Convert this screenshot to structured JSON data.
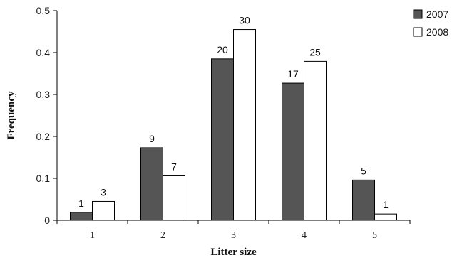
{
  "chart_data": {
    "type": "bar",
    "title": "",
    "xlabel": "Litter size",
    "ylabel": "Frequency",
    "categories": [
      "1",
      "2",
      "3",
      "4",
      "5"
    ],
    "ylim": [
      0,
      0.5
    ],
    "yticks": [
      "0",
      "0.1",
      "0.2",
      "0.3",
      "0.4",
      "0.5"
    ],
    "grid": false,
    "legend_position": "top-right",
    "series": [
      {
        "name": "2007",
        "color": "#555555",
        "values": [
          0.019,
          0.173,
          0.385,
          0.327,
          0.096
        ],
        "labels": [
          "1",
          "9",
          "20",
          "17",
          "5"
        ]
      },
      {
        "name": "2008",
        "color": "#ffffff",
        "values": [
          0.045,
          0.106,
          0.455,
          0.379,
          0.015
        ],
        "labels": [
          "3",
          "7",
          "30",
          "25",
          "1"
        ]
      }
    ]
  }
}
